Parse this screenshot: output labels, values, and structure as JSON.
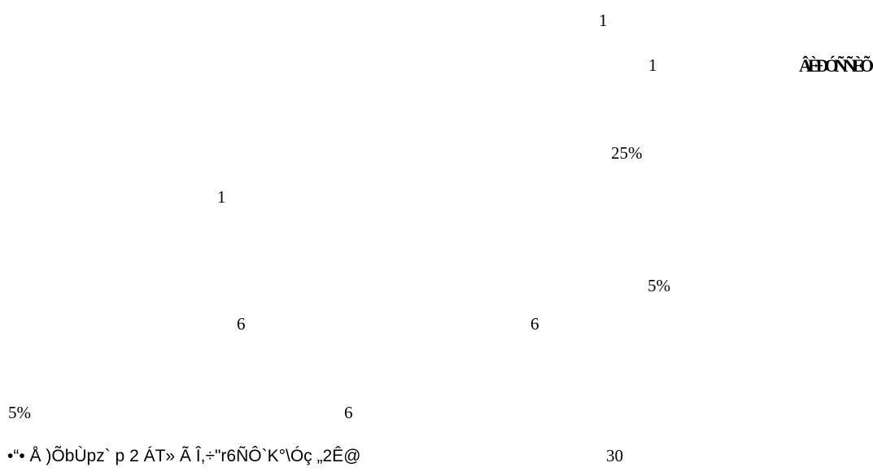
{
  "page": {
    "background": "#ffffff",
    "text_color": "#000000",
    "fragments": {
      "one_top": "1",
      "one_right": "1",
      "glyph_cluster": "ÂÈÐÓÑÑÈÕ",
      "pct_25": "25%",
      "one_left": "1",
      "pct_5_right": "5%",
      "six_a": "6",
      "six_b": "6",
      "pct_5_left": "5%",
      "six_c": "6",
      "garbled_line": "•“• Å )ÕbÙpz` p 2 ÁT» Ã Î,÷\"r6ÑÔ`K°\\Óç „2Ê@",
      "thirty": "30"
    }
  }
}
